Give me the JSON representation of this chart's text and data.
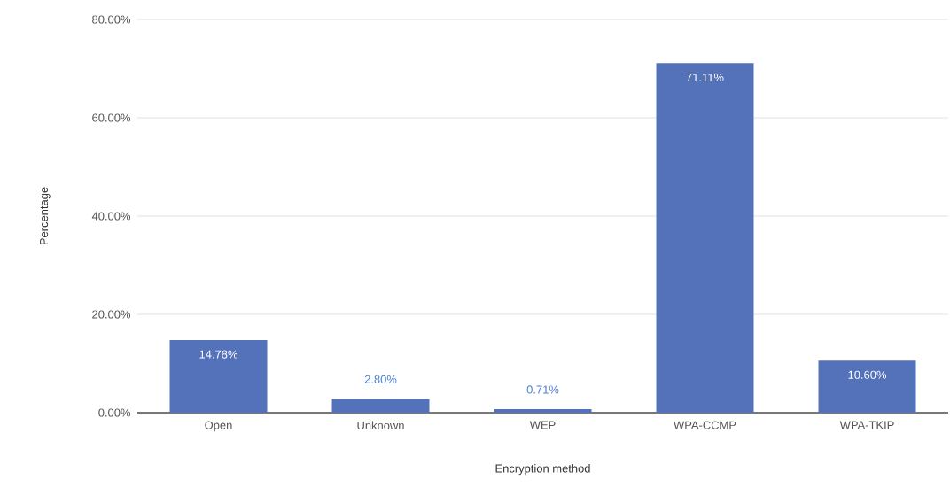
{
  "chart_data": {
    "type": "bar",
    "xlabel": "Encryption method",
    "ylabel": "Percentage",
    "categories": [
      "Open",
      "Unknown",
      "WEP",
      "WPA-CCMP",
      "WPA-TKIP"
    ],
    "values": [
      14.78,
      2.8,
      0.71,
      71.11,
      10.6
    ],
    "value_labels": [
      "14.78%",
      "2.80%",
      "0.71%",
      "71.11%",
      "10.60%"
    ],
    "color": "#5472b9",
    "ylim": [
      0,
      80
    ],
    "yticks": [
      {
        "value": 0,
        "label": "0.00%"
      },
      {
        "value": 20,
        "label": "20.00%"
      },
      {
        "value": 40,
        "label": "40.00%"
      },
      {
        "value": 60,
        "label": "60.00%"
      },
      {
        "value": 80,
        "label": "80.00%"
      }
    ],
    "grid": "y"
  }
}
